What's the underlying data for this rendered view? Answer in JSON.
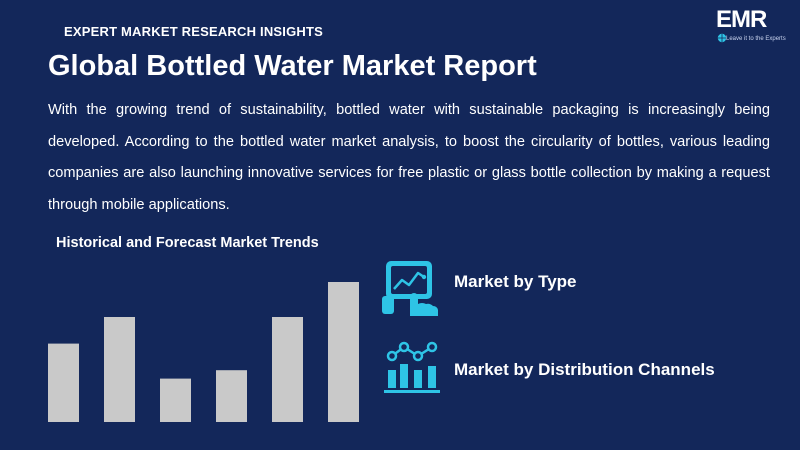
{
  "header": {
    "kicker": "EXPERT MARKET RESEARCH INSIGHTS",
    "title": "Global Bottled Water Market Report"
  },
  "logo": {
    "text": "EMR",
    "tagline": "Leave it to the Experts"
  },
  "description": "With the growing trend of sustainability, bottled water with sustainable packaging is increasingly being developed. According to the bottled water market analysis, to boost the circularity of bottles, various leading companies are also launching innovative services for free plastic or glass bottle collection by making a request through mobile applications.",
  "chart_section": {
    "title": "Historical and Forecast Market Trends"
  },
  "chart_data": {
    "type": "bar",
    "categories": [
      "",
      "",
      "",
      "",
      "",
      ""
    ],
    "values": [
      56,
      75,
      31,
      37,
      75,
      100
    ],
    "ylim": [
      0,
      100
    ],
    "bar_color": "#c9c9c9",
    "grid": false,
    "title": "",
    "xlabel": "",
    "ylabel": ""
  },
  "features": [
    {
      "label": "Market by Type",
      "icon": "tablet-touch-chart-icon"
    },
    {
      "label": "Market by Distribution Channels",
      "icon": "bar-chart-trend-icon"
    }
  ],
  "colors": {
    "background": "#13275a",
    "accent": "#2ec4e6",
    "text": "#ffffff",
    "bars": "#c9c9c9"
  }
}
